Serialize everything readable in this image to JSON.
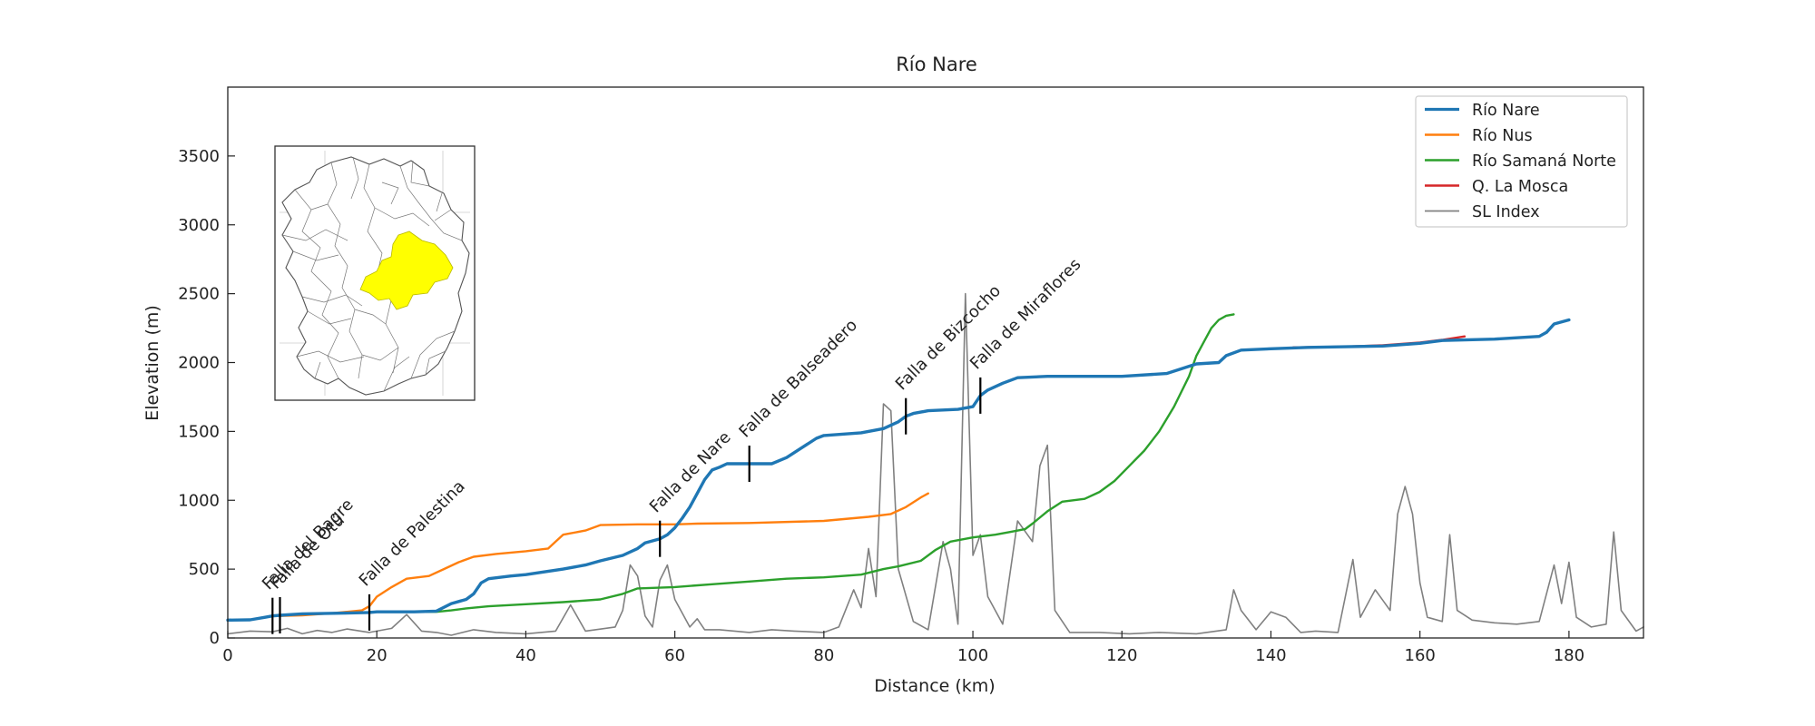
{
  "chart_data": {
    "type": "line",
    "title": "Río Nare",
    "xlabel": "Distance (km)",
    "ylabel": "Elevation (m)",
    "xlim": [
      0,
      190
    ],
    "ylim": [
      0,
      4000
    ],
    "xticks": [
      0,
      20,
      40,
      60,
      80,
      100,
      120,
      140,
      160,
      180
    ],
    "yticks": [
      0,
      500,
      1000,
      1500,
      2000,
      2500,
      3000,
      3500
    ],
    "grid": false,
    "legend_position": "top-right",
    "inset": "watershed-location-map",
    "series": [
      {
        "name": "Río Nare",
        "color": "#1f77b4",
        "points": [
          [
            0,
            130
          ],
          [
            3,
            132
          ],
          [
            5,
            150
          ],
          [
            6,
            160
          ],
          [
            7,
            165
          ],
          [
            10,
            175
          ],
          [
            15,
            180
          ],
          [
            19,
            185
          ],
          [
            20,
            190
          ],
          [
            25,
            190
          ],
          [
            28,
            195
          ],
          [
            30,
            250
          ],
          [
            32,
            280
          ],
          [
            33,
            320
          ],
          [
            34,
            400
          ],
          [
            35,
            430
          ],
          [
            38,
            450
          ],
          [
            40,
            460
          ],
          [
            45,
            500
          ],
          [
            48,
            530
          ],
          [
            50,
            560
          ],
          [
            53,
            600
          ],
          [
            55,
            650
          ],
          [
            56,
            690
          ],
          [
            58,
            720
          ],
          [
            59,
            750
          ],
          [
            60,
            800
          ],
          [
            61,
            870
          ],
          [
            62,
            950
          ],
          [
            63,
            1050
          ],
          [
            64,
            1150
          ],
          [
            65,
            1220
          ],
          [
            66,
            1240
          ],
          [
            67,
            1265
          ],
          [
            70,
            1265
          ],
          [
            73,
            1265
          ],
          [
            75,
            1310
          ],
          [
            77,
            1380
          ],
          [
            79,
            1450
          ],
          [
            80,
            1470
          ],
          [
            85,
            1490
          ],
          [
            88,
            1520
          ],
          [
            90,
            1570
          ],
          [
            91,
            1610
          ],
          [
            92,
            1630
          ],
          [
            94,
            1650
          ],
          [
            98,
            1660
          ],
          [
            100,
            1680
          ],
          [
            101,
            1760
          ],
          [
            102,
            1800
          ],
          [
            104,
            1850
          ],
          [
            106,
            1890
          ],
          [
            110,
            1900
          ],
          [
            120,
            1900
          ],
          [
            126,
            1920
          ],
          [
            130,
            1990
          ],
          [
            133,
            2000
          ],
          [
            134,
            2050
          ],
          [
            136,
            2090
          ],
          [
            140,
            2100
          ],
          [
            145,
            2110
          ],
          [
            155,
            2120
          ],
          [
            160,
            2140
          ],
          [
            163,
            2160
          ],
          [
            170,
            2170
          ],
          [
            176,
            2190
          ],
          [
            177,
            2220
          ],
          [
            178,
            2280
          ],
          [
            180,
            2310
          ]
        ]
      },
      {
        "name": "Río Nus",
        "color": "#ff7f0e",
        "points": [
          [
            7,
            160
          ],
          [
            10,
            165
          ],
          [
            14,
            180
          ],
          [
            18,
            200
          ],
          [
            19,
            230
          ],
          [
            20,
            300
          ],
          [
            22,
            370
          ],
          [
            24,
            430
          ],
          [
            27,
            450
          ],
          [
            29,
            500
          ],
          [
            31,
            550
          ],
          [
            33,
            590
          ],
          [
            36,
            610
          ],
          [
            40,
            630
          ],
          [
            43,
            650
          ],
          [
            44,
            700
          ],
          [
            45,
            750
          ],
          [
            48,
            780
          ],
          [
            50,
            820
          ],
          [
            55,
            825
          ],
          [
            60,
            825
          ],
          [
            63,
            830
          ],
          [
            70,
            835
          ],
          [
            80,
            850
          ],
          [
            86,
            880
          ],
          [
            89,
            900
          ],
          [
            91,
            950
          ],
          [
            93,
            1020
          ],
          [
            94,
            1050
          ]
        ]
      },
      {
        "name": "Río Samaná Norte",
        "color": "#2ca02c",
        "points": [
          [
            19,
            190
          ],
          [
            25,
            190
          ],
          [
            28,
            190
          ],
          [
            30,
            200
          ],
          [
            32,
            215
          ],
          [
            35,
            230
          ],
          [
            40,
            245
          ],
          [
            45,
            260
          ],
          [
            50,
            280
          ],
          [
            53,
            320
          ],
          [
            55,
            360
          ],
          [
            60,
            370
          ],
          [
            65,
            390
          ],
          [
            70,
            410
          ],
          [
            75,
            430
          ],
          [
            80,
            440
          ],
          [
            85,
            460
          ],
          [
            88,
            500
          ],
          [
            90,
            520
          ],
          [
            93,
            560
          ],
          [
            95,
            640
          ],
          [
            97,
            700
          ],
          [
            100,
            730
          ],
          [
            103,
            750
          ],
          [
            105,
            770
          ],
          [
            107,
            790
          ],
          [
            108,
            830
          ],
          [
            110,
            920
          ],
          [
            112,
            990
          ],
          [
            115,
            1010
          ],
          [
            117,
            1060
          ],
          [
            119,
            1140
          ],
          [
            121,
            1250
          ],
          [
            123,
            1360
          ],
          [
            125,
            1500
          ],
          [
            127,
            1680
          ],
          [
            129,
            1900
          ],
          [
            130,
            2050
          ],
          [
            131,
            2150
          ],
          [
            132,
            2250
          ],
          [
            133,
            2310
          ],
          [
            134,
            2340
          ],
          [
            135,
            2350
          ]
        ]
      },
      {
        "name": "Q. La Mosca",
        "color": "#d62728",
        "points": [
          [
            143,
            2110
          ],
          [
            150,
            2115
          ],
          [
            155,
            2125
          ],
          [
            160,
            2145
          ],
          [
            163,
            2165
          ],
          [
            166,
            2190
          ]
        ]
      },
      {
        "name": "SL Index",
        "color": "#808080",
        "points": [
          [
            0,
            30
          ],
          [
            3,
            50
          ],
          [
            6,
            45
          ],
          [
            8,
            70
          ],
          [
            10,
            30
          ],
          [
            12,
            55
          ],
          [
            14,
            40
          ],
          [
            16,
            65
          ],
          [
            19,
            40
          ],
          [
            22,
            70
          ],
          [
            24,
            170
          ],
          [
            26,
            50
          ],
          [
            28,
            40
          ],
          [
            30,
            20
          ],
          [
            33,
            60
          ],
          [
            36,
            40
          ],
          [
            40,
            30
          ],
          [
            44,
            50
          ],
          [
            46,
            240
          ],
          [
            48,
            50
          ],
          [
            52,
            80
          ],
          [
            53,
            200
          ],
          [
            54,
            530
          ],
          [
            55,
            450
          ],
          [
            56,
            160
          ],
          [
            57,
            80
          ],
          [
            58,
            420
          ],
          [
            59,
            530
          ],
          [
            60,
            280
          ],
          [
            62,
            80
          ],
          [
            63,
            140
          ],
          [
            64,
            60
          ],
          [
            66,
            60
          ],
          [
            68,
            50
          ],
          [
            70,
            40
          ],
          [
            73,
            60
          ],
          [
            76,
            50
          ],
          [
            80,
            40
          ],
          [
            82,
            80
          ],
          [
            84,
            350
          ],
          [
            85,
            220
          ],
          [
            86,
            650
          ],
          [
            87,
            300
          ],
          [
            88,
            1700
          ],
          [
            89,
            1650
          ],
          [
            90,
            500
          ],
          [
            92,
            120
          ],
          [
            94,
            60
          ],
          [
            96,
            700
          ],
          [
            97,
            500
          ],
          [
            98,
            100
          ],
          [
            99,
            2500
          ],
          [
            100,
            600
          ],
          [
            101,
            750
          ],
          [
            102,
            300
          ],
          [
            104,
            100
          ],
          [
            106,
            850
          ],
          [
            108,
            700
          ],
          [
            109,
            1250
          ],
          [
            110,
            1400
          ],
          [
            111,
            200
          ],
          [
            113,
            40
          ],
          [
            117,
            40
          ],
          [
            121,
            30
          ],
          [
            125,
            40
          ],
          [
            130,
            30
          ],
          [
            134,
            60
          ],
          [
            135,
            350
          ],
          [
            136,
            200
          ],
          [
            138,
            60
          ],
          [
            140,
            190
          ],
          [
            142,
            150
          ],
          [
            144,
            40
          ],
          [
            146,
            50
          ],
          [
            149,
            40
          ],
          [
            151,
            570
          ],
          [
            152,
            150
          ],
          [
            154,
            350
          ],
          [
            156,
            200
          ],
          [
            157,
            900
          ],
          [
            158,
            1100
          ],
          [
            159,
            900
          ],
          [
            160,
            400
          ],
          [
            161,
            150
          ],
          [
            163,
            120
          ],
          [
            164,
            750
          ],
          [
            165,
            200
          ],
          [
            167,
            130
          ],
          [
            170,
            110
          ],
          [
            173,
            100
          ],
          [
            176,
            120
          ],
          [
            178,
            530
          ],
          [
            179,
            250
          ],
          [
            180,
            550
          ],
          [
            181,
            150
          ],
          [
            183,
            80
          ],
          [
            185,
            100
          ],
          [
            186,
            770
          ],
          [
            187,
            200
          ],
          [
            189,
            50
          ],
          [
            190,
            80
          ]
        ]
      }
    ],
    "faults": [
      {
        "label": "Falla del Bagre",
        "x": 6
      },
      {
        "label": "Falla de Otú",
        "x": 7
      },
      {
        "label": "Falla de Palestina",
        "x": 19
      },
      {
        "label": "Falla de Nare",
        "x": 58
      },
      {
        "label": "Falla de Balseadero",
        "x": 70
      },
      {
        "label": "Falla de Bizcocho",
        "x": 91
      },
      {
        "label": "Falla de Miraflores",
        "x": 101
      }
    ]
  }
}
